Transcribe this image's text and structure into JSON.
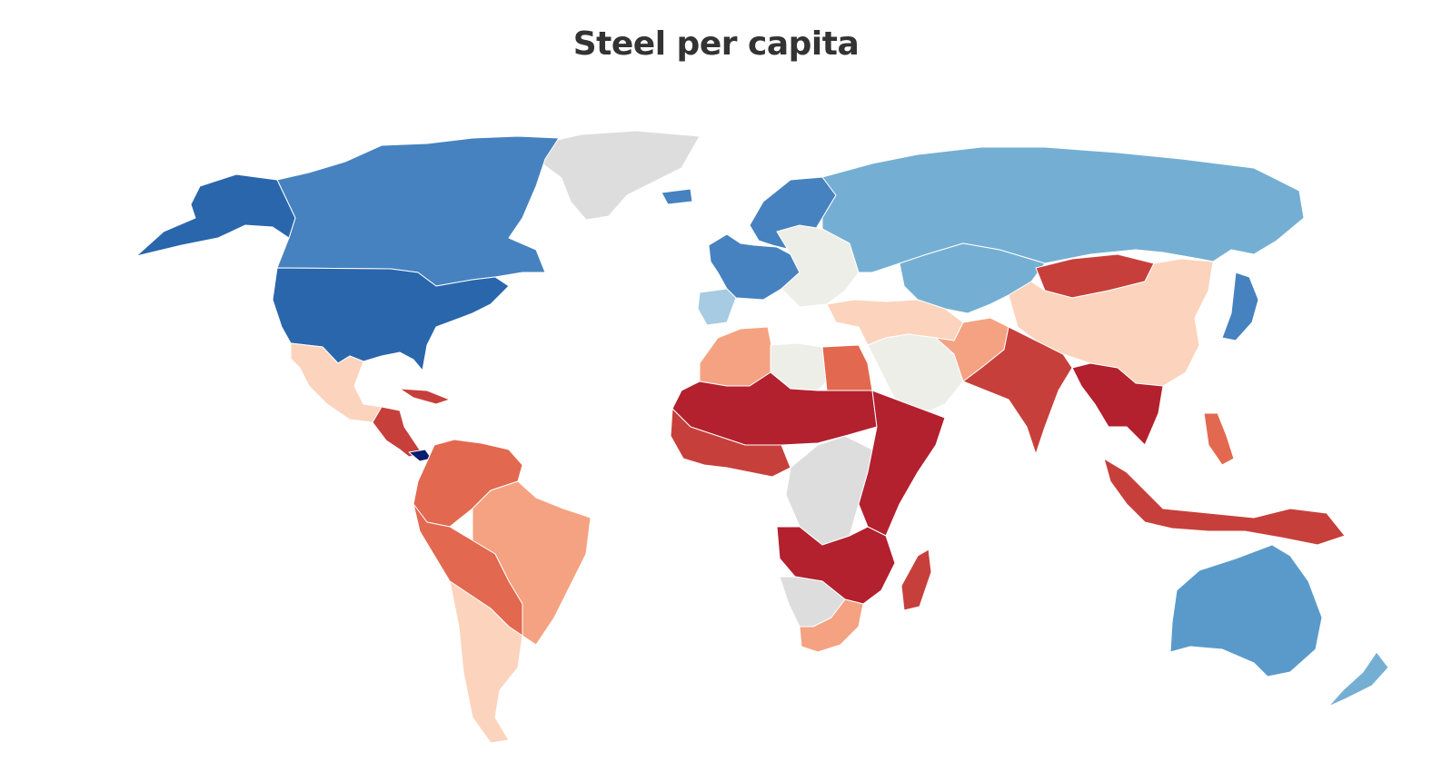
{
  "title": "Steel per capita",
  "palette": {
    "very_high": "#2a66ac",
    "high": "#4682bf",
    "mid_high": "#5a9acb",
    "moderate_high": "#74afd3",
    "low_high": "#a6cbe3",
    "neutral": "#eeeee8",
    "light_low": "#fcd3bc",
    "low": "#f4a281",
    "lower": "#e2684f",
    "very_low": "#c73f3b",
    "lowest": "#b3202e",
    "highest": "#0a1d6e",
    "no_data": "#dddddd"
  },
  "regions": [
    {
      "name": "greenland",
      "level": "no_data"
    },
    {
      "name": "canada",
      "level": "high"
    },
    {
      "name": "alaska",
      "level": "very_high"
    },
    {
      "name": "usa",
      "level": "very_high"
    },
    {
      "name": "mexico",
      "level": "light_low"
    },
    {
      "name": "central-america",
      "level": "very_low"
    },
    {
      "name": "cuba",
      "level": "very_low"
    },
    {
      "name": "panama",
      "level": "highest"
    },
    {
      "name": "colombia-venezuela",
      "level": "lower"
    },
    {
      "name": "brazil",
      "level": "low"
    },
    {
      "name": "peru-bolivia",
      "level": "lower"
    },
    {
      "name": "argentina-chile",
      "level": "light_low"
    },
    {
      "name": "iceland",
      "level": "high"
    },
    {
      "name": "scandinavia",
      "level": "high"
    },
    {
      "name": "western-europe",
      "level": "high"
    },
    {
      "name": "iberia",
      "level": "low_high"
    },
    {
      "name": "eastern-europe",
      "level": "neutral"
    },
    {
      "name": "russia",
      "level": "moderate_high"
    },
    {
      "name": "central-asia",
      "level": "moderate_high"
    },
    {
      "name": "turkey-middle-east",
      "level": "light_low"
    },
    {
      "name": "arabia",
      "level": "neutral"
    },
    {
      "name": "iran",
      "level": "low"
    },
    {
      "name": "north-africa-west",
      "level": "low"
    },
    {
      "name": "libya",
      "level": "neutral"
    },
    {
      "name": "egypt",
      "level": "lower"
    },
    {
      "name": "sahel",
      "level": "lowest"
    },
    {
      "name": "west-africa",
      "level": "very_low"
    },
    {
      "name": "central-africa",
      "level": "no_data"
    },
    {
      "name": "east-africa",
      "level": "lowest"
    },
    {
      "name": "southern-africa",
      "level": "lowest"
    },
    {
      "name": "namibia-botswana",
      "level": "no_data"
    },
    {
      "name": "south-africa",
      "level": "low"
    },
    {
      "name": "madagascar",
      "level": "very_low"
    },
    {
      "name": "mongolia",
      "level": "very_low"
    },
    {
      "name": "china",
      "level": "light_low"
    },
    {
      "name": "india",
      "level": "very_low"
    },
    {
      "name": "southeast-asia",
      "level": "lowest"
    },
    {
      "name": "indonesia",
      "level": "very_low"
    },
    {
      "name": "philippines",
      "level": "lower"
    },
    {
      "name": "japan",
      "level": "high"
    },
    {
      "name": "australia",
      "level": "mid_high"
    },
    {
      "name": "new-zealand",
      "level": "moderate_high"
    }
  ]
}
